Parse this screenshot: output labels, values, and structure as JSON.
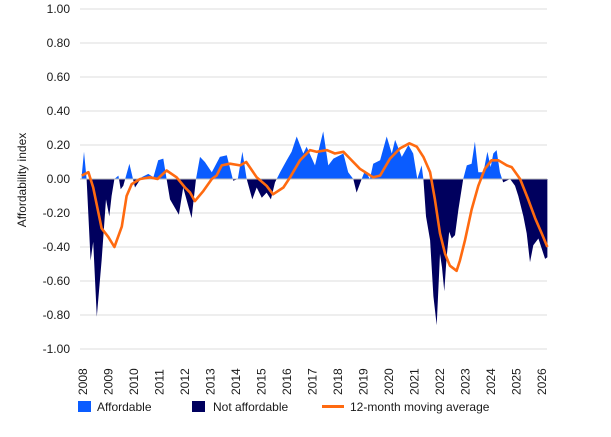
{
  "chart_data": {
    "type": "area",
    "title": "",
    "xlabel": "",
    "ylabel": "Affordability index",
    "ylim": [
      -1.0,
      1.0
    ],
    "xlim": [
      2008,
      2026.3
    ],
    "grid": true,
    "legend_position": "bottom",
    "y_ticks": [
      "1.00",
      "0.80",
      "0.60",
      "0.40",
      "0.20",
      "0.00",
      "-0.20",
      "-0.40",
      "-0.60",
      "-0.80",
      "-1.00"
    ],
    "x_ticks": [
      "2008",
      "2009",
      "2010",
      "2011",
      "2012",
      "2013",
      "2014",
      "2015",
      "2016",
      "2017",
      "2018",
      "2019",
      "2020",
      "2021",
      "2022",
      "2023",
      "2024",
      "2025",
      "2026"
    ],
    "colors": {
      "affordable": "#0a5cff",
      "not_affordable": "#00005e",
      "moving_average": "#ff6a10"
    },
    "legend": [
      {
        "key": "affordable",
        "label": "Affordable"
      },
      {
        "key": "not_affordable",
        "label": "Not affordable"
      },
      {
        "key": "moving_average",
        "label": "12-month moving average"
      }
    ],
    "series": [
      {
        "name": "Affordable / Not affordable",
        "kind": "area",
        "x": [
          2007.95,
          2008.04,
          2008.14,
          2008.3,
          2008.4,
          2008.54,
          2008.73,
          2008.9,
          2009.03,
          2009.12,
          2009.23,
          2009.39,
          2009.48,
          2009.58,
          2009.82,
          2010.04,
          2010.3,
          2010.56,
          2010.76,
          2010.95,
          2011.15,
          2011.28,
          2011.41,
          2011.76,
          2011.93,
          2012.26,
          2012.43,
          2012.59,
          2012.78,
          2013.05,
          2013.37,
          2013.64,
          2013.89,
          2014.07,
          2014.25,
          2014.42,
          2014.64,
          2014.81,
          2015.01,
          2015.2,
          2015.37,
          2015.53,
          2015.73,
          2015.99,
          2016.18,
          2016.38,
          2016.64,
          2016.77,
          2017.1,
          2017.42,
          2017.62,
          2017.82,
          2018.21,
          2018.4,
          2018.6,
          2018.73,
          2018.93,
          2019.06,
          2019.25,
          2019.38,
          2019.65,
          2019.91,
          2020.11,
          2020.24,
          2020.5,
          2020.76,
          2020.95,
          2021.11,
          2021.28,
          2021.35,
          2021.45,
          2021.61,
          2021.74,
          2021.87,
          2022.0,
          2022.08,
          2022.17,
          2022.26,
          2022.36,
          2022.46,
          2022.59,
          2022.72,
          2022.91,
          2023.05,
          2023.24,
          2023.37,
          2023.5,
          2023.7,
          2023.86,
          2023.99,
          2024.09,
          2024.22,
          2024.35,
          2024.48,
          2024.75,
          2024.94,
          2025.07,
          2025.27,
          2025.4,
          2025.53,
          2025.66,
          2025.86,
          2026.12,
          2026.21
        ],
        "y": [
          0.02,
          0.16,
          0,
          -0.48,
          -0.37,
          -0.81,
          -0.48,
          -0.12,
          -0.22,
          -0.1,
          0,
          0.02,
          -0.06,
          -0.04,
          0.09,
          -0.05,
          0.01,
          0.03,
          0.01,
          0.11,
          0.12,
          0,
          -0.12,
          -0.21,
          -0.05,
          -0.23,
          0,
          0.13,
          0.1,
          0.04,
          0.13,
          0.14,
          -0.01,
          0,
          0.16,
          0,
          -0.12,
          -0.05,
          -0.11,
          -0.08,
          -0.12,
          -0.02,
          0.04,
          0.11,
          0.16,
          0.25,
          0.15,
          0.19,
          0.08,
          0.28,
          0.08,
          0.12,
          0.15,
          0.04,
          0,
          -0.08,
          0,
          0.05,
          0,
          0.09,
          0.11,
          0.25,
          0.15,
          0.23,
          0.13,
          0.2,
          0.15,
          0,
          0.08,
          0,
          -0.22,
          -0.36,
          -0.69,
          -0.86,
          -0.44,
          -0.52,
          -0.66,
          -0.46,
          -0.31,
          -0.35,
          -0.33,
          -0.18,
          0,
          0.08,
          0.09,
          0.22,
          0.04,
          0.04,
          0.16,
          0.07,
          0.15,
          0.17,
          0.04,
          -0.02,
          0,
          -0.04,
          -0.1,
          -0.22,
          -0.32,
          -0.49,
          -0.39,
          -0.35,
          -0.47,
          -0.46
        ]
      },
      {
        "name": "12-month moving average",
        "kind": "line",
        "x": [
          2007.95,
          2008.21,
          2008.4,
          2008.73,
          2008.99,
          2009.23,
          2009.52,
          2009.71,
          2009.91,
          2010.24,
          2010.63,
          2010.92,
          2011.28,
          2011.67,
          2012.0,
          2012.2,
          2012.39,
          2012.72,
          2013.05,
          2013.24,
          2013.44,
          2013.76,
          2014.16,
          2014.4,
          2014.81,
          2015.2,
          2015.45,
          2015.86,
          2016.12,
          2016.51,
          2016.9,
          2017.16,
          2017.56,
          2017.88,
          2018.21,
          2018.47,
          2018.86,
          2019.38,
          2019.65,
          2020.04,
          2020.43,
          2020.8,
          2021.09,
          2021.35,
          2021.61,
          2021.8,
          2022.0,
          2022.2,
          2022.39,
          2022.65,
          2022.78,
          2022.98,
          2023.24,
          2023.5,
          2023.76,
          2024.02,
          2024.29,
          2024.62,
          2024.81,
          2025.14,
          2025.46,
          2025.73,
          2025.99,
          2026.21
        ],
        "y": [
          0.02,
          0.04,
          -0.05,
          -0.29,
          -0.34,
          -0.4,
          -0.28,
          -0.1,
          -0.03,
          0,
          0.01,
          0,
          0.05,
          0.01,
          -0.05,
          -0.08,
          -0.13,
          -0.07,
          0,
          0.02,
          0.08,
          0.09,
          0.08,
          0.1,
          0.01,
          -0.04,
          -0.09,
          -0.05,
          0.01,
          0.11,
          0.17,
          0.16,
          0.17,
          0.15,
          0.16,
          0.12,
          0.06,
          0.01,
          0.02,
          0.12,
          0.18,
          0.21,
          0.19,
          0.13,
          0.04,
          -0.12,
          -0.32,
          -0.44,
          -0.51,
          -0.54,
          -0.48,
          -0.36,
          -0.18,
          -0.04,
          0.06,
          0.11,
          0.11,
          0.08,
          0.07,
          0,
          -0.12,
          -0.23,
          -0.32,
          -0.4
        ]
      }
    ]
  }
}
